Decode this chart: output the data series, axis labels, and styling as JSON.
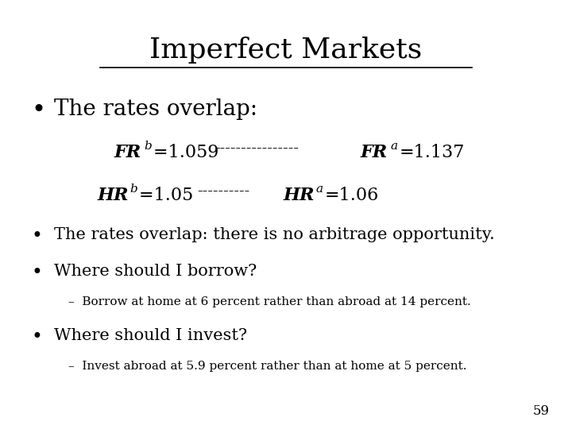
{
  "title": "Imperfect Markets",
  "background_color": "#ffffff",
  "text_color": "#000000",
  "title_fontsize": 26,
  "bullet1_fontsize": 20,
  "fr_hr_fontsize": 16,
  "body_fontsize": 15,
  "small_fontsize": 12,
  "sub_fontsize": 11,
  "page_number": "59",
  "bullet1": "The rates overlap:",
  "fr_b_left": "FR",
  "fr_b_super": "b",
  "fr_b_num": "=1.059 ",
  "fr_dashes": "----------------",
  "fr_a_left": "FR",
  "fr_a_super": "a",
  "fr_a_num": "=1.137",
  "hr_b_left": "HR",
  "hr_b_super": "b",
  "hr_b_num": "=1.05 ",
  "hr_dashes": "----------",
  "hr_a_left": "HR",
  "hr_a_super": "a",
  "hr_a_num": "=1.06",
  "bullet2": "The rates overlap: there is no arbitrage opportunity.",
  "bullet3": "Where should I borrow?",
  "sub3": "Borrow at home at 6 percent rather than abroad at 14 percent.",
  "bullet4": "Where should I invest?",
  "sub4": "Invest abroad at 5.9 percent rather than at home at 5 percent."
}
